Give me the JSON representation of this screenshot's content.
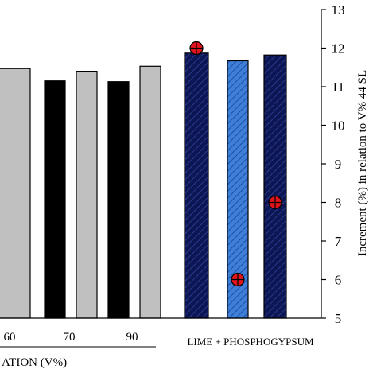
{
  "chart_data": {
    "type": "bar",
    "ylabel_right": "Increment (%) in relation to V% 44 SL",
    "y_ticks": [
      "5",
      "6",
      "7",
      "8",
      "9",
      "10",
      "11",
      "12",
      "13"
    ],
    "ylim": [
      5,
      13
    ],
    "grid": false,
    "x_tick_labels": [
      "60",
      "70",
      "90"
    ],
    "group1_label": "ATION (V%)",
    "group2_label": "LIME + PHOSPHOGYPSUM",
    "bars": [
      {
        "group": "liming",
        "value": 11.47,
        "style": "gray"
      },
      {
        "group": "liming",
        "value": 11.15,
        "style": "black"
      },
      {
        "group": "liming",
        "value": 11.4,
        "style": "gray"
      },
      {
        "group": "liming",
        "value": 11.13,
        "style": "black"
      },
      {
        "group": "liming",
        "value": 11.53,
        "style": "gray"
      },
      {
        "group": "lime + phosphogypsum",
        "value": 11.87,
        "style": "navy-hatched"
      },
      {
        "group": "lime + phosphogypsum",
        "value": 11.67,
        "style": "blue-hatched"
      },
      {
        "group": "lime + phosphogypsum",
        "value": 11.82,
        "style": "navy-hatched"
      }
    ],
    "markers": [
      {
        "bar_index": 5,
        "value": 12.0
      },
      {
        "bar_index": 6,
        "value": 6.0
      },
      {
        "bar_index": 7,
        "value": 8.0
      }
    ],
    "colors": {
      "gray": "#c0c0c0",
      "black": "#000000",
      "navy": "#0c1654",
      "blue": "#3f7fd8",
      "marker": "#e0141c"
    }
  }
}
